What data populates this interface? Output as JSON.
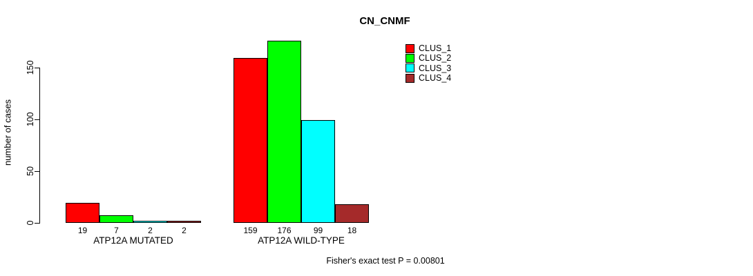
{
  "chart_data": {
    "type": "bar",
    "title": "CN_CNMF",
    "ylabel": "number of cases",
    "ylim": [
      0,
      150
    ],
    "yticks": [
      "0",
      "50",
      "100",
      "150"
    ],
    "grid": false,
    "legend_position": "top-right",
    "categories": [
      "ATP12A MUTATED",
      "ATP12A WILD-TYPE"
    ],
    "series": [
      {
        "name": "CLUS_1",
        "color": "#ff0000",
        "values": [
          19,
          159
        ]
      },
      {
        "name": "CLUS_2",
        "color": "#00ff00",
        "values": [
          7,
          176
        ]
      },
      {
        "name": "CLUS_3",
        "color": "#00ffff",
        "values": [
          2,
          99
        ]
      },
      {
        "name": "CLUS_4",
        "color": "#a52a2a",
        "values": [
          2,
          18
        ]
      }
    ],
    "annotation": "Fisher's exact test P = 0.00801"
  }
}
